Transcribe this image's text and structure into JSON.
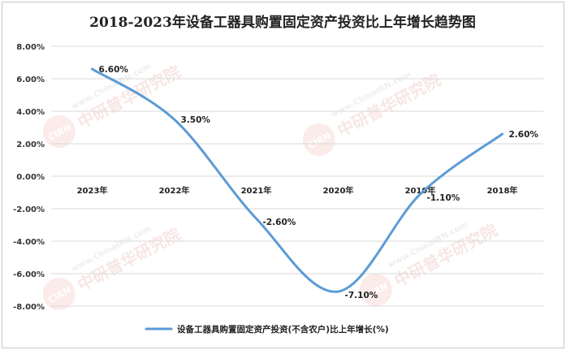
{
  "chart_data": {
    "type": "line",
    "title": "2018-2023年设备工器具购置固定资产投资比上年增长趋势图",
    "categories": [
      "2023年",
      "2022年",
      "2021年",
      "2020年",
      "2019年",
      "2018年"
    ],
    "series": [
      {
        "name": "设备工器具购置固定资产投资(不含农户)比上年增长(%)",
        "values": [
          6.6,
          3.5,
          -2.6,
          -7.1,
          -1.1,
          2.6
        ],
        "labels": [
          "6.60%",
          "3.50%",
          "-2.60%",
          "-7.10%",
          "-1.10%",
          "2.60%"
        ],
        "color": "#5b9bd5"
      }
    ],
    "y_ticks": [
      "8.00%",
      "6.00%",
      "4.00%",
      "2.00%",
      "0.00%",
      "-2.00%",
      "-4.00%",
      "-6.00%",
      "-8.00%"
    ],
    "ylim": [
      -8,
      8
    ],
    "y_step": 2,
    "grid": true,
    "smooth": true,
    "legend_position": "bottom"
  },
  "watermark": {
    "logo_text": "CIRN",
    "url_text": "www.ChinaIRN.com",
    "brand_text": "中研普华研究院"
  }
}
